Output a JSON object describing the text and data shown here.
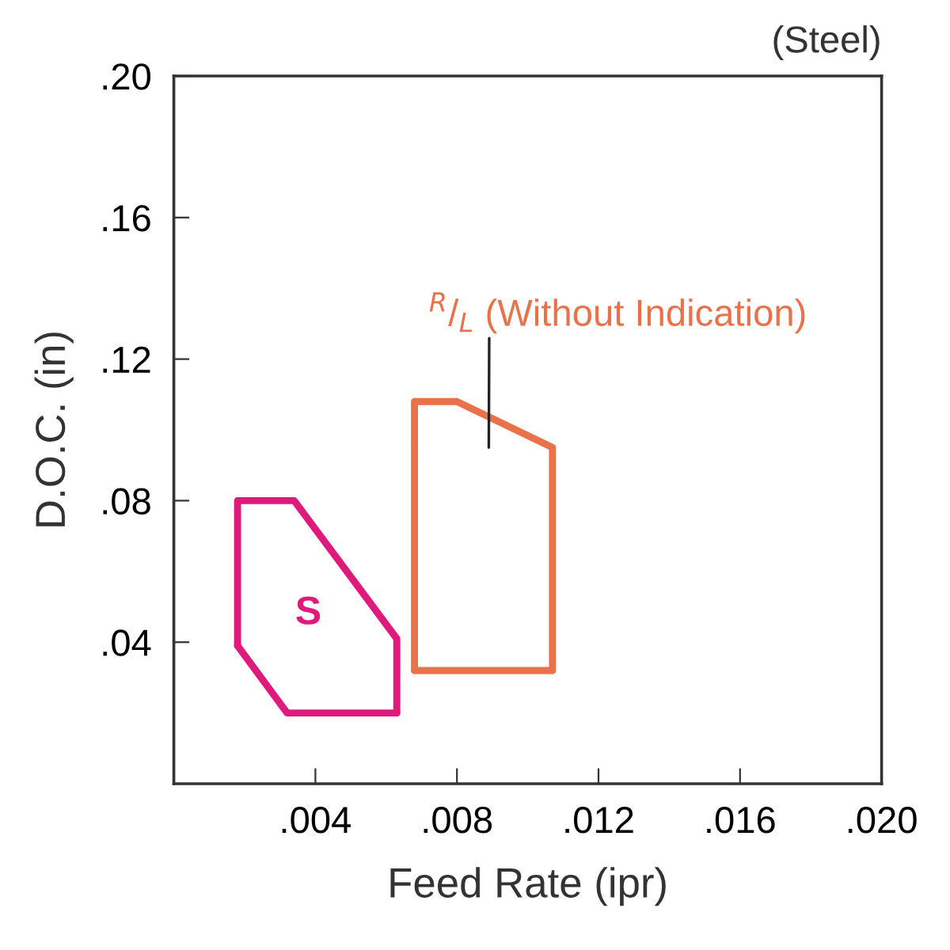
{
  "chart_data": {
    "type": "line",
    "title": "(Steel)",
    "xlabel": "Feed Rate (ipr)",
    "ylabel": "D.O.C. (in)",
    "series": [
      {
        "color": "#e0197d",
        "x": [
          0.0018,
          0.0018,
          0.0034,
          0.0063,
          0.0063
        ],
        "values": [
          0.039,
          0.08,
          0.08,
          0.041,
          0.02
        ]
      },
      {
        "color": "#e0197d",
        "x": [
          0.0018,
          0.0032,
          0.0063
        ],
        "values": [
          0.039,
          0.02,
          0.02
        ]
      },
      {
        "color": "#e8734a",
        "x": [
          0.0068,
          0.0068,
          0.008,
          0.0107,
          0.0107
        ],
        "values": [
          0.032,
          0.108,
          0.108,
          0.095,
          0.032
        ]
      },
      {
        "color": "#e8734a",
        "x": [
          0.0068,
          0.0107
        ],
        "values": [
          0.032,
          0.032
        ]
      }
    ],
    "annotations": [
      "S",
      "$^{R}$/$_{L}$ (Without Indication)"
    ],
    "xlim": [
      0,
      0.02
    ],
    "ylim": [
      0,
      0.2
    ],
    "xticks": [
      {
        "value": 0.004,
        "label": ".004"
      },
      {
        "value": 0.008,
        "label": ".008"
      },
      {
        "value": 0.012,
        "label": ".012"
      },
      {
        "value": 0.016,
        "label": ".016"
      },
      {
        "value": 0.02,
        "label": ".020"
      }
    ],
    "yticks": [
      {
        "value": 0.04,
        "label": ".04"
      },
      {
        "value": 0.08,
        "label": ".08"
      },
      {
        "value": 0.12,
        "label": ".12"
      },
      {
        "value": 0.16,
        "label": ".16"
      },
      {
        "value": 0.2,
        "label": ".20"
      }
    ],
    "grid": false,
    "legend": false,
    "line_style": "solid"
  }
}
